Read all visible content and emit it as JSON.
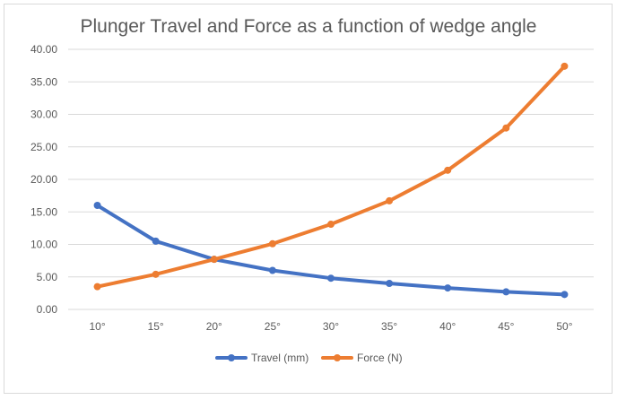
{
  "chart_data": {
    "type": "line",
    "title": "Plunger Travel and Force as a function of wedge angle",
    "xlabel": "",
    "ylabel": "",
    "categories": [
      "10°",
      "15°",
      "20°",
      "25°",
      "30°",
      "35°",
      "40°",
      "45°",
      "50°"
    ],
    "ylim": [
      0,
      40
    ],
    "yticks": [
      "0.00",
      "5.00",
      "10.00",
      "15.00",
      "20.00",
      "25.00",
      "30.00",
      "35.00",
      "40.00"
    ],
    "grid": true,
    "legend_position": "bottom",
    "series": [
      {
        "name": "Travel (mm)",
        "color": "#4472c4",
        "values": [
          16.0,
          10.5,
          7.7,
          6.0,
          4.8,
          4.0,
          3.3,
          2.7,
          2.3
        ]
      },
      {
        "name": "Force (N)",
        "color": "#ed7d31",
        "values": [
          3.5,
          5.4,
          7.7,
          10.1,
          13.1,
          16.7,
          21.4,
          27.9,
          37.4
        ]
      }
    ]
  }
}
